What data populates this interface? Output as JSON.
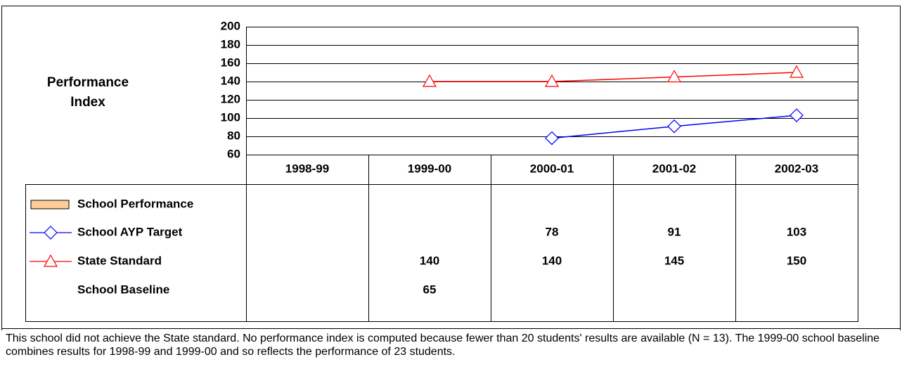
{
  "chart_data": {
    "type": "line",
    "y_label": "Performance Index",
    "categories": [
      "1998-99",
      "1999-00",
      "2000-01",
      "2001-02",
      "2002-03"
    ],
    "ylim": [
      60,
      200
    ],
    "yticks": [
      60,
      80,
      100,
      120,
      140,
      160,
      180,
      200
    ],
    "grid": true,
    "series": [
      {
        "name": "School Performance",
        "kind": "bar",
        "color": "#ffcc99",
        "values": [
          null,
          null,
          null,
          null,
          null
        ]
      },
      {
        "name": "School AYP Target",
        "color": "#0000ff",
        "marker": "diamond",
        "values": [
          null,
          null,
          78,
          91,
          103
        ]
      },
      {
        "name": "State Standard",
        "color": "#ff0000",
        "marker": "triangle",
        "values": [
          null,
          140,
          140,
          145,
          150
        ]
      },
      {
        "name": "School Baseline",
        "values": [
          null,
          65,
          null,
          null,
          null
        ]
      }
    ]
  },
  "note": "This school did not achieve the State standard. No performance index is computed because fewer than 20 students' results are available (N = 13). The 1999-00 school baseline combines results for 1998-99 and 1999-00 and so reflects the performance of 23 students."
}
